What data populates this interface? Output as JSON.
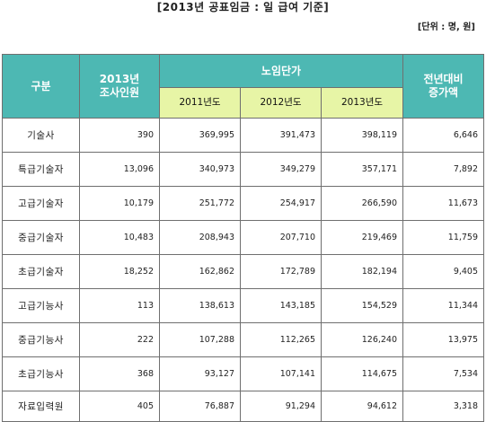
{
  "title": "[2013년 공표임금 : 일 급여 기준]",
  "unit": "[단위 : 명, 원]",
  "table": {
    "header": {
      "category": "구분",
      "survey": "2013년\n조사인원",
      "group": "노임단가",
      "years": [
        "2011년도",
        "2012년도",
        "2013년도"
      ],
      "increase": "전년대비\n증가액"
    },
    "rows": [
      {
        "category": "기술사",
        "survey": "390",
        "y2011": "369,995",
        "y2012": "391,473",
        "y2013": "398,119",
        "increase": "6,646"
      },
      {
        "category": "특급기술자",
        "survey": "13,096",
        "y2011": "340,973",
        "y2012": "349,279",
        "y2013": "357,171",
        "increase": "7,892"
      },
      {
        "category": "고급기술자",
        "survey": "10,179",
        "y2011": "251,772",
        "y2012": "254,917",
        "y2013": "266,590",
        "increase": "11,673"
      },
      {
        "category": "중급기술자",
        "survey": "10,483",
        "y2011": "208,943",
        "y2012": "207,710",
        "y2013": "219,469",
        "increase": "11,759"
      },
      {
        "category": "초급기술자",
        "survey": "18,252",
        "y2011": "162,862",
        "y2012": "172,789",
        "y2013": "182,194",
        "increase": "9,405"
      },
      {
        "category": "고급기능사",
        "survey": "113",
        "y2011": "138,613",
        "y2012": "143,185",
        "y2013": "154,529",
        "increase": "11,344"
      },
      {
        "category": "중급기능사",
        "survey": "222",
        "y2011": "107,288",
        "y2012": "112,265",
        "y2013": "126,240",
        "increase": "13,975"
      },
      {
        "category": "초급기능사",
        "survey": "368",
        "y2011": "93,127",
        "y2012": "107,141",
        "y2013": "114,675",
        "increase": "7,534"
      },
      {
        "category": "자료입력원",
        "survey": "405",
        "y2011": "76,887",
        "y2012": "91,294",
        "y2013": "94,612",
        "increase": "3,318"
      }
    ]
  },
  "colors": {
    "header_bg": "#4db8b3",
    "subheader_bg": "#e7f5a6",
    "border": "#6f6f6f"
  }
}
